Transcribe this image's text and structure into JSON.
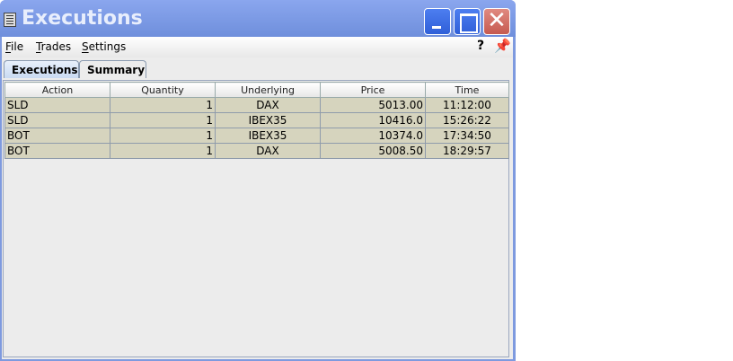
{
  "window": {
    "title": "Executions",
    "icon": "window-menu-icon",
    "close_glyph": "✕"
  },
  "menu": {
    "items": [
      {
        "label": "File",
        "mnemonic": "F",
        "rest": "ile"
      },
      {
        "label": "Trades",
        "mnemonic": "T",
        "rest": "rades"
      },
      {
        "label": "Settings",
        "mnemonic": "S",
        "rest": "ettings"
      }
    ],
    "help": "?",
    "pin_icon": "pin-icon"
  },
  "tabs": [
    {
      "label": "Executions",
      "active": true
    },
    {
      "label": "Summary",
      "active": false
    }
  ],
  "table": {
    "columns": [
      "Action",
      "Quantity",
      "Underlying",
      "Price",
      "Time"
    ],
    "rows": [
      [
        "SLD",
        "1",
        "DAX",
        "5013.00",
        "11:12:00"
      ],
      [
        "SLD",
        "1",
        "IBEX35",
        "10416.0",
        "15:26:22"
      ],
      [
        "BOT",
        "1",
        "IBEX35",
        "10374.0",
        "17:34:50"
      ],
      [
        "BOT",
        "1",
        "DAX",
        "5008.50",
        "18:29:57"
      ]
    ]
  },
  "colors": {
    "row_bg": "#d6d4be",
    "titlebar": "#7e9adf"
  }
}
